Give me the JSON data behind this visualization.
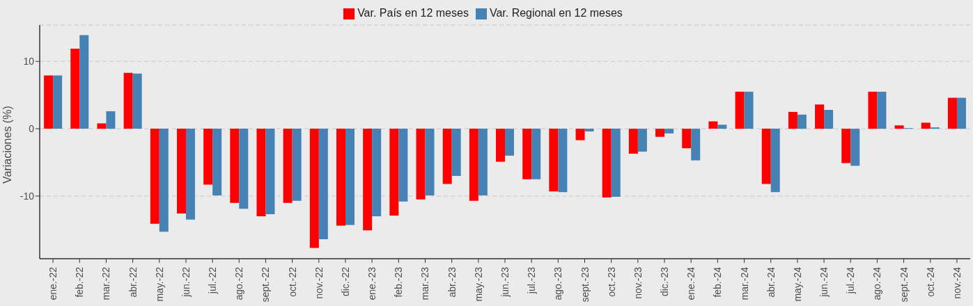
{
  "chart_data": {
    "type": "bar",
    "ylabel": "Variaciones (%)",
    "categories": [
      "ene.-22",
      "feb.-22",
      "mar.-22",
      "abr.-22",
      "may.-22",
      "jun.-22",
      "jul.-22",
      "ago.-22",
      "sept.-22",
      "oct.-22",
      "nov.-22",
      "dic.-22",
      "ene.-23",
      "feb.-23",
      "mar.-23",
      "abr.-23",
      "may.-23",
      "jun.-23",
      "jul.-23",
      "ago.-23",
      "sept.-23",
      "oct.-23",
      "nov.-23",
      "dic.-23",
      "ene.-24",
      "feb.-24",
      "mar.-24",
      "abr.-24",
      "may.-24",
      "jun.-24",
      "jul.-24",
      "ago.-24",
      "sept.-24",
      "oct.-24",
      "nov.-24"
    ],
    "series": [
      {
        "name": "Var. País en 12 meses",
        "color": "#ff0000",
        "values": [
          7.9,
          11.9,
          0.8,
          8.3,
          -14.1,
          -12.6,
          -8.3,
          -11.0,
          -13.0,
          -11.0,
          -17.7,
          -14.4,
          -15.1,
          -12.9,
          -10.5,
          -8.2,
          -10.7,
          -4.9,
          -7.5,
          -9.3,
          -1.7,
          -10.2,
          -3.7,
          -1.2,
          -2.9,
          1.1,
          5.5,
          -8.2,
          2.5,
          3.6,
          -5.1,
          5.5,
          0.5,
          0.9,
          4.6
        ]
      },
      {
        "name": "Var. Regional en 12 meses",
        "color": "#4682b4",
        "values": [
          7.9,
          13.9,
          2.6,
          8.2,
          -15.3,
          -13.5,
          -9.9,
          -11.9,
          -12.7,
          -10.7,
          -16.4,
          -14.3,
          -13.0,
          -10.8,
          -9.9,
          -7.0,
          -9.9,
          -4.0,
          -7.5,
          -9.4,
          -0.4,
          -10.1,
          -3.4,
          -0.7,
          -4.7,
          0.6,
          5.5,
          -9.4,
          2.1,
          2.8,
          -5.5,
          5.5,
          0.1,
          0.2,
          4.6
        ]
      }
    ],
    "ylim": [
      -19.3,
      15.4
    ],
    "yticks": [
      -10,
      0,
      10
    ],
    "grid": "y",
    "legend": "top"
  }
}
